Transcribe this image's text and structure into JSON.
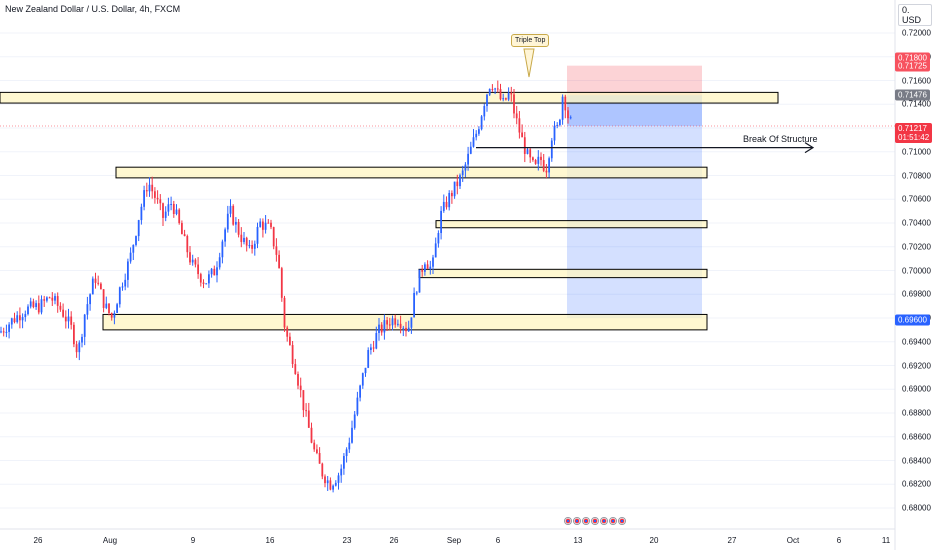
{
  "header": {
    "symbol_title": "New Zealand Dollar / U.S. Dollar, 4h, FXCM",
    "currency": "0. USD"
  },
  "annotations": {
    "triple_top": "Triple Top",
    "break_of_structure": "Break Of Structure"
  },
  "price_tags": {
    "target_top": "0.71800",
    "stop_loss": "0.71725",
    "entry": "0.71476",
    "current_price": "0.71217",
    "countdown": "01:51:42",
    "take_profit": "0.69600"
  },
  "colors": {
    "bull": "#2962ff",
    "bear": "#f23645",
    "zone_fill": "#fff5c2",
    "zone_stroke": "#000000",
    "profit_fill": "#2962ff",
    "loss_fill": "#f23645"
  },
  "chart_data": {
    "type": "candlestick",
    "title": "New Zealand Dollar / U.S. Dollar, 4h, FXCM",
    "y_ticks": [
      "0.72000",
      "0.71800",
      "0.71600",
      "0.71400",
      "0.71200",
      "0.71000",
      "0.70800",
      "0.70600",
      "0.70400",
      "0.70200",
      "0.70000",
      "0.69800",
      "0.69600",
      "0.69400",
      "0.69200",
      "0.69000",
      "0.68800",
      "0.68600",
      "0.68400",
      "0.68200",
      "0.68000"
    ],
    "ylim": [
      0.6795,
      0.7215
    ],
    "x_ticks": [
      "26",
      "Aug",
      "9",
      "16",
      "23",
      "26",
      "Sep",
      "6",
      "13",
      "20",
      "27",
      "Oct",
      "6",
      "11"
    ],
    "path_points": [
      [
        0,
        0.6948
      ],
      [
        12,
        0.6958
      ],
      [
        25,
        0.6967
      ],
      [
        40,
        0.697
      ],
      [
        50,
        0.6978
      ],
      [
        62,
        0.6966
      ],
      [
        72,
        0.695
      ],
      [
        78,
        0.693
      ],
      [
        85,
        0.6965
      ],
      [
        95,
        0.6995
      ],
      [
        105,
        0.697
      ],
      [
        112,
        0.696
      ],
      [
        120,
        0.6985
      ],
      [
        130,
        0.701
      ],
      [
        140,
        0.705
      ],
      [
        148,
        0.7075
      ],
      [
        155,
        0.7062
      ],
      [
        163,
        0.7045
      ],
      [
        172,
        0.7058
      ],
      [
        182,
        0.703
      ],
      [
        192,
        0.7005
      ],
      [
        205,
        0.699
      ],
      [
        215,
        0.7
      ],
      [
        222,
        0.7025
      ],
      [
        230,
        0.705
      ],
      [
        240,
        0.703
      ],
      [
        250,
        0.7015
      ],
      [
        260,
        0.704
      ],
      [
        270,
        0.7035
      ],
      [
        278,
        0.701
      ],
      [
        285,
        0.695
      ],
      [
        295,
        0.692
      ],
      [
        305,
        0.688
      ],
      [
        315,
        0.6845
      ],
      [
        322,
        0.683
      ],
      [
        330,
        0.682
      ],
      [
        340,
        0.683
      ],
      [
        350,
        0.686
      ],
      [
        360,
        0.69
      ],
      [
        368,
        0.693
      ],
      [
        378,
        0.6948
      ],
      [
        390,
        0.6958
      ],
      [
        398,
        0.696
      ],
      [
        408,
        0.695
      ],
      [
        416,
        0.6985
      ],
      [
        425,
        0.701
      ],
      [
        432,
        0.7
      ],
      [
        440,
        0.7045
      ],
      [
        448,
        0.706
      ],
      [
        455,
        0.707
      ],
      [
        462,
        0.708
      ],
      [
        470,
        0.71
      ],
      [
        478,
        0.712
      ],
      [
        485,
        0.7145
      ],
      [
        491,
        0.716
      ],
      [
        497,
        0.715
      ],
      [
        503,
        0.714
      ],
      [
        510,
        0.715
      ],
      [
        515,
        0.713
      ],
      [
        522,
        0.711
      ],
      [
        528,
        0.7095
      ],
      [
        535,
        0.7085
      ],
      [
        540,
        0.7095
      ],
      [
        546,
        0.7085
      ],
      [
        552,
        0.7115
      ],
      [
        558,
        0.712
      ],
      [
        563,
        0.715
      ],
      [
        568,
        0.713
      ],
      [
        572,
        0.7122
      ]
    ],
    "horizontal_zones": [
      {
        "from": 0.7141,
        "to": 0.715
      },
      {
        "from": 0.7078,
        "to": 0.7087
      },
      {
        "from": 0.7036,
        "to": 0.7042
      },
      {
        "from": 0.6994,
        "to": 0.7001
      },
      {
        "from": 0.695,
        "to": 0.6963
      }
    ],
    "short_position": {
      "entry": 0.71476,
      "stop": 0.71725,
      "target": 0.696
    },
    "break_of_structure_level": 0.71035,
    "current_price": 0.71217
  }
}
